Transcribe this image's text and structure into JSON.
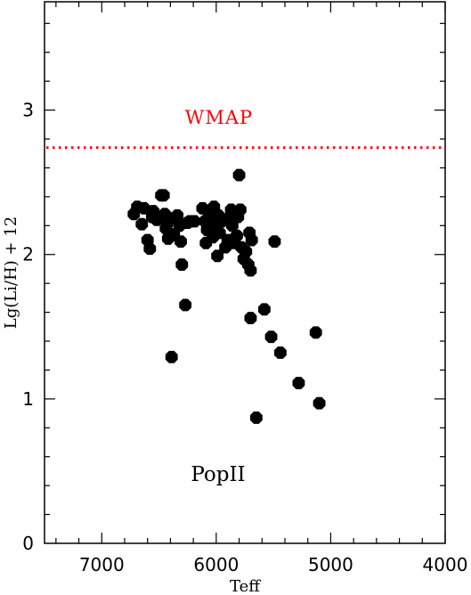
{
  "chart_data": {
    "type": "scatter",
    "title": "",
    "xlabel": "Teff",
    "ylabel": "Lg(Li/H) + 12",
    "xlim": [
      7500,
      4000
    ],
    "ylim": [
      0,
      3.75
    ],
    "x_reversed": true,
    "x_ticks": [
      7000,
      6000,
      5000,
      4000
    ],
    "x_tick_labels": [
      "7000",
      "6000",
      "5000",
      "4000"
    ],
    "y_ticks": [
      0,
      1,
      2,
      3
    ],
    "y_tick_labels": [
      "0",
      "1",
      "2",
      "3"
    ],
    "grid": false,
    "reference_line": {
      "label": "WMAP",
      "y": 2.74,
      "style": "dotted",
      "color": "#ff0000"
    },
    "annotations": [
      {
        "text": "WMAP",
        "color": "#ff0000"
      },
      {
        "text": "PopII",
        "color": "#000000"
      }
    ],
    "marker_color": "#000000",
    "points": [
      {
        "x": 6720,
        "y": 2.28
      },
      {
        "x": 6690,
        "y": 2.33
      },
      {
        "x": 6650,
        "y": 2.21
      },
      {
        "x": 6630,
        "y": 2.32
      },
      {
        "x": 6600,
        "y": 2.1
      },
      {
        "x": 6580,
        "y": 2.04
      },
      {
        "x": 6560,
        "y": 2.26
      },
      {
        "x": 6550,
        "y": 2.3
      },
      {
        "x": 6520,
        "y": 2.24
      },
      {
        "x": 6480,
        "y": 2.41
      },
      {
        "x": 6460,
        "y": 2.41
      },
      {
        "x": 6450,
        "y": 2.28
      },
      {
        "x": 6440,
        "y": 2.18
      },
      {
        "x": 6430,
        "y": 2.21
      },
      {
        "x": 6420,
        "y": 2.11
      },
      {
        "x": 6400,
        "y": 2.25
      },
      {
        "x": 6390,
        "y": 1.29
      },
      {
        "x": 6370,
        "y": 2.14
      },
      {
        "x": 6340,
        "y": 2.27
      },
      {
        "x": 6320,
        "y": 2.2
      },
      {
        "x": 6310,
        "y": 2.09
      },
      {
        "x": 6300,
        "y": 1.93
      },
      {
        "x": 6270,
        "y": 1.65
      },
      {
        "x": 6250,
        "y": 2.22
      },
      {
        "x": 6230,
        "y": 2.23
      },
      {
        "x": 6190,
        "y": 2.23
      },
      {
        "x": 6120,
        "y": 2.32
      },
      {
        "x": 6100,
        "y": 2.23
      },
      {
        "x": 6090,
        "y": 2.08
      },
      {
        "x": 6080,
        "y": 2.17
      },
      {
        "x": 6070,
        "y": 2.3
      },
      {
        "x": 6050,
        "y": 2.25
      },
      {
        "x": 6030,
        "y": 2.12
      },
      {
        "x": 6020,
        "y": 2.33
      },
      {
        "x": 6000,
        "y": 2.2
      },
      {
        "x": 5990,
        "y": 1.99
      },
      {
        "x": 5980,
        "y": 2.27
      },
      {
        "x": 5970,
        "y": 2.15
      },
      {
        "x": 5950,
        "y": 2.23
      },
      {
        "x": 5920,
        "y": 2.05
      },
      {
        "x": 5900,
        "y": 2.1
      },
      {
        "x": 5880,
        "y": 2.26
      },
      {
        "x": 5870,
        "y": 2.31
      },
      {
        "x": 5860,
        "y": 2.2
      },
      {
        "x": 5840,
        "y": 2.08
      },
      {
        "x": 5820,
        "y": 2.13
      },
      {
        "x": 5810,
        "y": 2.26
      },
      {
        "x": 5800,
        "y": 2.55
      },
      {
        "x": 5790,
        "y": 2.31
      },
      {
        "x": 5780,
        "y": 2.05
      },
      {
        "x": 5760,
        "y": 1.97
      },
      {
        "x": 5740,
        "y": 2.02
      },
      {
        "x": 5720,
        "y": 1.93
      },
      {
        "x": 5710,
        "y": 2.15
      },
      {
        "x": 5700,
        "y": 1.89
      },
      {
        "x": 5690,
        "y": 2.1
      },
      {
        "x": 5700,
        "y": 1.56
      },
      {
        "x": 5650,
        "y": 0.87
      },
      {
        "x": 5580,
        "y": 1.62
      },
      {
        "x": 5520,
        "y": 1.43
      },
      {
        "x": 5490,
        "y": 2.09
      },
      {
        "x": 5440,
        "y": 1.32
      },
      {
        "x": 5280,
        "y": 1.11
      },
      {
        "x": 5130,
        "y": 1.46
      },
      {
        "x": 5100,
        "y": 0.97
      }
    ]
  }
}
